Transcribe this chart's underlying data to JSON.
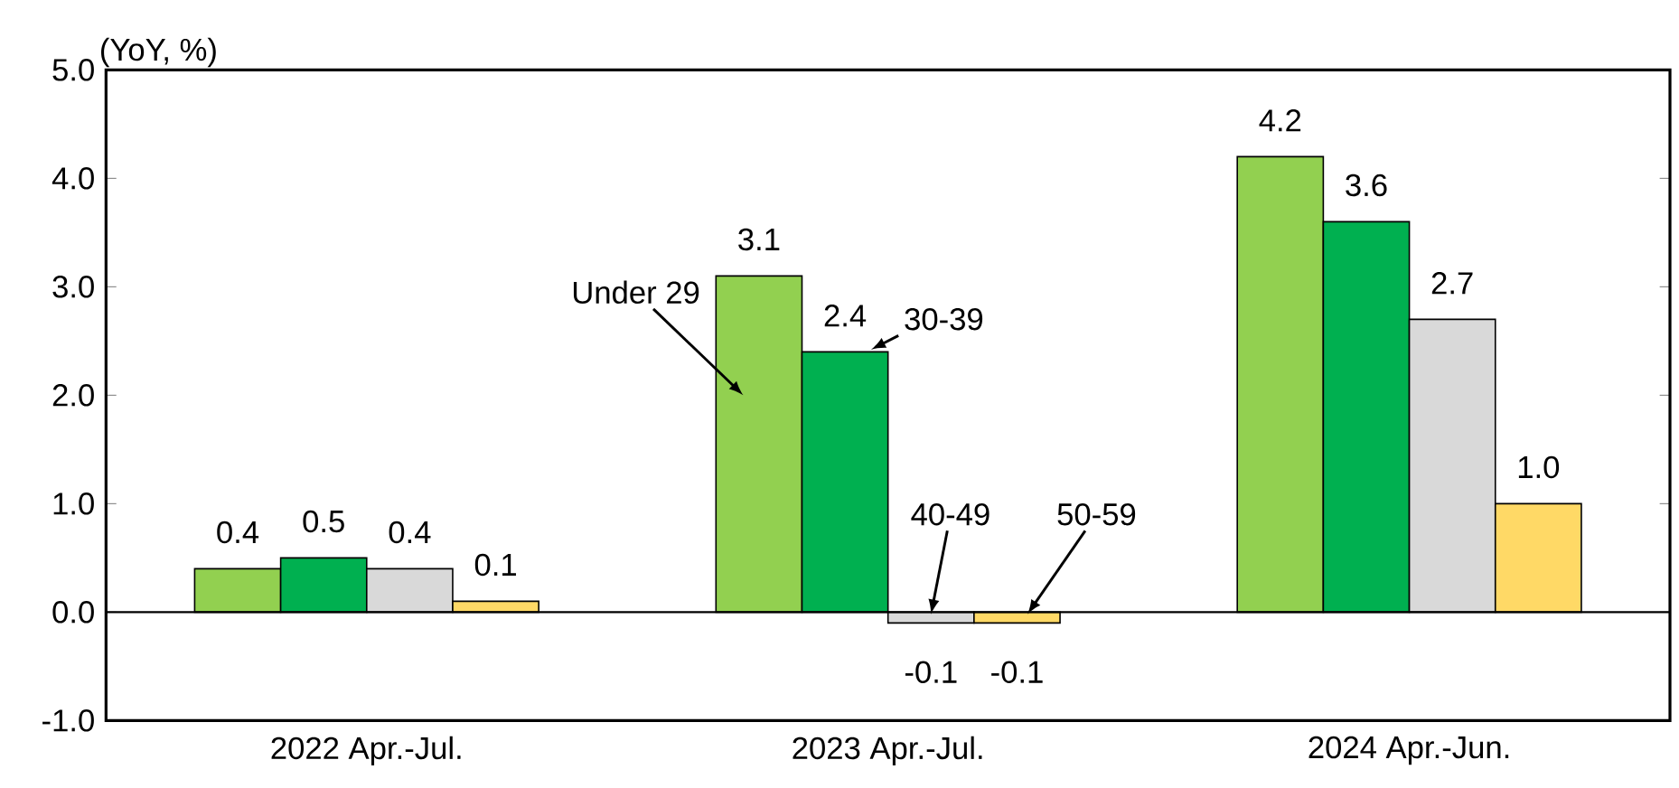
{
  "chart_data": {
    "type": "bar",
    "ylabel": "(YoY, %)",
    "categories": [
      "2022 Apr.-Jul.",
      "2023 Apr.-Jul.",
      "2024 Apr.-Jun."
    ],
    "series": [
      {
        "name": "Under 29",
        "color": "#92d050",
        "values": [
          0.4,
          3.1,
          4.2
        ],
        "value_labels": [
          "0.4",
          "3.1",
          "4.2"
        ]
      },
      {
        "name": "30-39",
        "color": "#00b050",
        "values": [
          0.5,
          2.4,
          3.6
        ],
        "value_labels": [
          "0.5",
          "2.4",
          "3.6"
        ]
      },
      {
        "name": "40-49",
        "color": "#d9d9d9",
        "values": [
          0.4,
          -0.1,
          2.7
        ],
        "value_labels": [
          "0.4",
          "-0.1",
          "2.7"
        ]
      },
      {
        "name": "50-59",
        "color": "#ffd966",
        "values": [
          0.1,
          -0.1,
          1.0
        ],
        "value_labels": [
          "0.1",
          "-0.1",
          "1.0"
        ]
      }
    ],
    "ylim": [
      -1,
      5
    ],
    "yticks": [
      {
        "value": -1,
        "label": "-1.0"
      },
      {
        "value": 0,
        "label": "0.0"
      },
      {
        "value": 1,
        "label": "1.0"
      },
      {
        "value": 2,
        "label": "2.0"
      },
      {
        "value": 3,
        "label": "3.0"
      },
      {
        "value": 4,
        "label": "4.0"
      },
      {
        "value": 5,
        "label": "5.0"
      }
    ]
  }
}
